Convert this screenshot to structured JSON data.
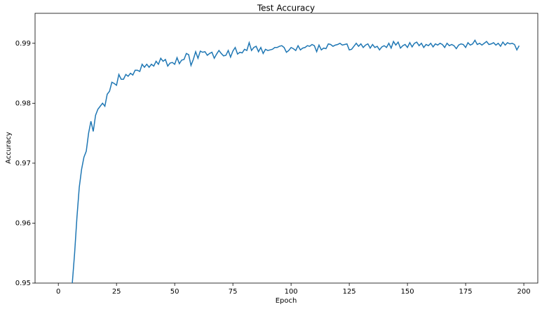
{
  "chart_data": {
    "type": "line",
    "title": "Test Accuracy",
    "xlabel": "Epoch",
    "ylabel": "Accuracy",
    "color": "#1f77b4",
    "x": [
      6,
      7,
      8,
      9,
      10,
      11,
      12,
      13,
      14,
      15,
      16,
      17,
      18,
      19,
      20,
      21,
      22,
      23,
      24,
      25,
      26,
      27,
      28,
      29,
      30,
      31,
      32,
      33,
      34,
      35,
      36,
      37,
      38,
      39,
      40,
      41,
      42,
      43,
      44,
      45,
      46,
      47,
      48,
      49,
      50,
      51,
      52,
      53,
      54,
      55,
      56,
      57,
      58,
      59,
      60,
      61,
      62,
      63,
      64,
      65,
      66,
      67,
      68,
      69,
      70,
      71,
      72,
      73,
      74,
      75,
      76,
      77,
      78,
      79,
      80,
      81,
      82,
      83,
      84,
      85,
      86,
      87,
      88,
      89,
      90,
      91,
      92,
      93,
      94,
      95,
      96,
      97,
      98,
      99,
      100,
      101,
      102,
      103,
      104,
      105,
      106,
      107,
      108,
      109,
      110,
      111,
      112,
      113,
      114,
      115,
      116,
      117,
      118,
      119,
      120,
      121,
      122,
      123,
      124,
      125,
      126,
      127,
      128,
      129,
      130,
      131,
      132,
      133,
      134,
      135,
      136,
      137,
      138,
      139,
      140,
      141,
      142,
      143,
      144,
      145,
      146,
      147,
      148,
      149,
      150,
      151,
      152,
      153,
      154,
      155,
      156,
      157,
      158,
      159,
      160,
      161,
      162,
      163,
      164,
      165,
      166,
      167,
      168,
      169,
      170,
      171,
      172,
      173,
      174,
      175,
      176,
      177,
      178,
      179,
      180,
      181,
      182,
      183,
      184,
      185,
      186,
      187,
      188,
      189,
      190,
      191,
      192,
      193,
      194,
      195,
      196,
      197,
      198
    ],
    "values": [
      0.95,
      0.955,
      0.961,
      0.966,
      0.969,
      0.971,
      0.972,
      0.975,
      0.977,
      0.9753,
      0.978,
      0.979,
      0.9795,
      0.98,
      0.9795,
      0.9815,
      0.982,
      0.9835,
      0.9833,
      0.983,
      0.9848,
      0.984,
      0.984,
      0.9848,
      0.9845,
      0.985,
      0.9847,
      0.9855,
      0.9855,
      0.9853,
      0.9865,
      0.986,
      0.9865,
      0.986,
      0.9865,
      0.9862,
      0.987,
      0.9865,
      0.9875,
      0.987,
      0.9873,
      0.9862,
      0.9867,
      0.9868,
      0.9865,
      0.9876,
      0.9866,
      0.9872,
      0.9873,
      0.9883,
      0.9881,
      0.9863,
      0.9873,
      0.9886,
      0.9875,
      0.9887,
      0.9885,
      0.9886,
      0.988,
      0.9883,
      0.9885,
      0.9875,
      0.9882,
      0.9888,
      0.9883,
      0.9879,
      0.988,
      0.9888,
      0.9877,
      0.9887,
      0.9893,
      0.9882,
      0.9885,
      0.9884,
      0.989,
      0.9888,
      0.9901,
      0.9888,
      0.9893,
      0.9895,
      0.9886,
      0.9893,
      0.9883,
      0.989,
      0.9888,
      0.9889,
      0.989,
      0.9893,
      0.9893,
      0.9895,
      0.9896,
      0.9893,
      0.9885,
      0.9888,
      0.9893,
      0.9891,
      0.9888,
      0.9896,
      0.9889,
      0.9892,
      0.9893,
      0.9896,
      0.9895,
      0.9898,
      0.9896,
      0.9886,
      0.9897,
      0.9889,
      0.9892,
      0.9891,
      0.9899,
      0.9898,
      0.9895,
      0.9897,
      0.9898,
      0.99,
      0.9897,
      0.9898,
      0.9899,
      0.9889,
      0.989,
      0.9895,
      0.99,
      0.9895,
      0.9899,
      0.9893,
      0.9897,
      0.9899,
      0.9892,
      0.9898,
      0.9893,
      0.9895,
      0.9889,
      0.9894,
      0.9896,
      0.9893,
      0.99,
      0.9892,
      0.9903,
      0.9897,
      0.9902,
      0.9892,
      0.9896,
      0.9898,
      0.9893,
      0.9901,
      0.9894,
      0.99,
      0.9902,
      0.9896,
      0.99,
      0.9893,
      0.9898,
      0.9896,
      0.99,
      0.9894,
      0.9899,
      0.9897,
      0.99,
      0.9898,
      0.9893,
      0.99,
      0.9896,
      0.9898,
      0.9896,
      0.9891,
      0.9897,
      0.9899,
      0.9898,
      0.9893,
      0.9901,
      0.9897,
      0.9899,
      0.9905,
      0.9898,
      0.99,
      0.9897,
      0.99,
      0.9903,
      0.9898,
      0.9899,
      0.9901,
      0.9897,
      0.99,
      0.9895,
      0.9902,
      0.9897,
      0.9901,
      0.9899,
      0.99,
      0.9898,
      0.9889,
      0.9896
    ],
    "xlim": [
      -10,
      206
    ],
    "ylim": [
      0.95,
      0.995
    ],
    "xticks": [
      0,
      25,
      50,
      75,
      100,
      125,
      150,
      175,
      200
    ],
    "yticks": [
      0.95,
      0.96,
      0.97,
      0.98,
      0.99
    ]
  }
}
